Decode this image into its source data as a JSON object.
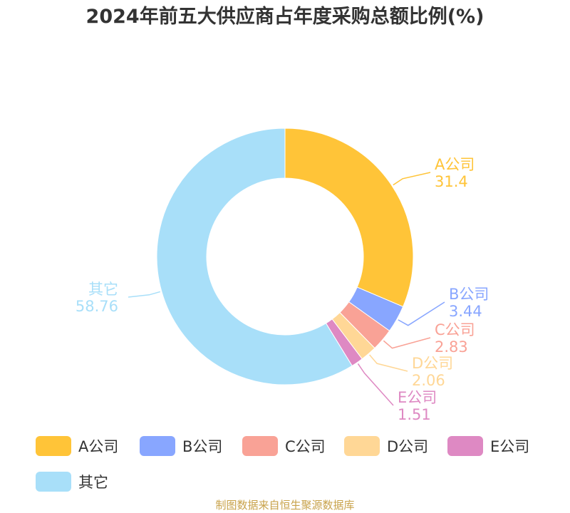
{
  "title": "2024年前五大供应商占年度采购总额比例(%)",
  "source": "制图数据来自恒生聚源数据库",
  "chart_data": {
    "type": "pie",
    "variant": "donut",
    "title": "2024年前五大供应商占年度采购总额比例(%)",
    "legend_position": "bottom",
    "slices": [
      {
        "name": "A公司",
        "value": 31.4,
        "value_label": "31.4",
        "color": "#FFC438"
      },
      {
        "name": "B公司",
        "value": 3.44,
        "value_label": "3.44",
        "color": "#88A6FF"
      },
      {
        "name": "C公司",
        "value": 2.83,
        "value_label": "2.83",
        "color": "#F9A296"
      },
      {
        "name": "D公司",
        "value": 2.06,
        "value_label": "2.06",
        "color": "#FFD796"
      },
      {
        "name": "E公司",
        "value": 1.51,
        "value_label": "1.51",
        "color": "#DE89C3"
      },
      {
        "name": "其它",
        "value": 58.76,
        "value_label": "58.76",
        "color": "#A8DFF9"
      }
    ]
  }
}
